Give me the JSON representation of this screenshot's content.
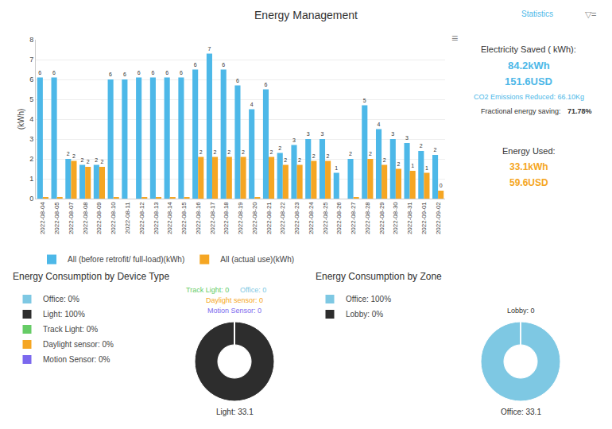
{
  "chart_data": [
    {
      "type": "bar",
      "title": "Energy Management",
      "categories": [
        "2022-08-04",
        "2022-08-05",
        "2022-08-07",
        "2022-08-08",
        "2022-08-09",
        "2022-08-10",
        "2022-08-11",
        "2022-08-12",
        "2022-08-13",
        "2022-08-14",
        "2022-08-15",
        "2022-08-16",
        "2022-08-17",
        "2022-08-18",
        "2022-08-19",
        "2022-08-20",
        "2022-08-21",
        "2022-08-22",
        "2022-08-23",
        "2022-08-24",
        "2022-08-25",
        "2022-08-26",
        "2022-08-27",
        "2022-08-28",
        "2022-08-29",
        "2022-08-30",
        "2022-08-31",
        "2022-09-01",
        "2022-09-02"
      ],
      "series": [
        {
          "name": "All (before retrofit/ full-load)(kWh)",
          "color": "#4db8e8",
          "values": [
            6.1,
            6.1,
            2.0,
            1.7,
            1.7,
            6.0,
            6.0,
            6.1,
            6.1,
            6.1,
            6.1,
            6.5,
            7.3,
            6.5,
            5.7,
            4.5,
            5.5,
            2.3,
            2.7,
            3.0,
            3.0,
            1.3,
            2.0,
            4.7,
            3.5,
            3.0,
            2.8,
            2.4,
            2.2
          ],
          "value_labels": [
            "6",
            "6",
            "2",
            "2",
            "2",
            "6",
            "6",
            "6",
            "6",
            "6",
            "6",
            "6",
            "7",
            "6",
            "6",
            "4",
            "6",
            "2",
            "3",
            "3",
            "3",
            "1",
            "2",
            "5",
            "4",
            "3",
            "3",
            "2",
            "2"
          ]
        },
        {
          "name": "All (actual use)(kWh)",
          "color": "#f5a623",
          "values": [
            0.05,
            0.05,
            1.9,
            1.6,
            1.6,
            0.05,
            0.0,
            0.05,
            0.05,
            0.05,
            0.05,
            2.1,
            2.1,
            2.1,
            2.1,
            0.05,
            2.1,
            1.7,
            1.7,
            1.9,
            1.9,
            0.0,
            0.05,
            2.0,
            1.7,
            1.5,
            1.4,
            1.3,
            0.4
          ],
          "value_labels": [
            null,
            null,
            "2",
            "2",
            "2",
            null,
            null,
            null,
            null,
            null,
            null,
            "2",
            "2",
            "2",
            "2",
            null,
            "2",
            "2",
            "2",
            "2",
            "2",
            null,
            null,
            "2",
            "2",
            "2",
            "1",
            "1",
            "0"
          ]
        }
      ],
      "ylabel": "(kWh)",
      "ylim": [
        0,
        8
      ],
      "yticks": [
        0,
        1,
        2,
        3,
        4,
        5,
        6,
        7,
        8
      ],
      "grid": true,
      "data_labels": true,
      "legend": "bottom",
      "annotations": [
        {
          "text": "Statistics",
          "color": "#4db8e8"
        },
        {
          "text": "▽=",
          "color": "#888888"
        },
        {
          "text": "≡",
          "color": "#888888"
        },
        {
          "text": "Electricity Saved ( kWh):",
          "color": "#333333"
        },
        {
          "text": "84.2kWh",
          "color": "#4db8e8"
        },
        {
          "text": "151.6USD",
          "color": "#4db8e8"
        },
        {
          "text": "CO2 Emissions Reduced: 66.10Kg",
          "color": "#4db8e8"
        },
        {
          "text": "Fractional energy saving:",
          "color": "#333333"
        },
        {
          "text": "71.78%",
          "color": "#333333"
        },
        {
          "text": "Energy Used:",
          "color": "#333333"
        },
        {
          "text": "33.1kWh",
          "color": "#f5a623"
        },
        {
          "text": "59.6USD",
          "color": "#f5a623"
        }
      ]
    },
    {
      "type": "pie",
      "title": "Energy Consumption by Device Type",
      "categories": [
        "Office: 0%",
        "Light: 100%",
        "Track Light: 0%",
        "Daylight sensor: 0%",
        "Motion Sensor: 0%"
      ],
      "values": [
        0.001,
        100,
        0.001,
        0.001,
        0.001
      ],
      "colors": [
        "#7ec8e3",
        "#2d2d2d",
        "#66cc66",
        "#f5a623",
        "#7b68ee"
      ],
      "legend": "left",
      "annotations": [
        {
          "text": "Light: 33.1",
          "color": "#333333"
        },
        {
          "text": "Track Light: 0",
          "color": "#66cc66"
        },
        {
          "text": "Office: 0",
          "color": "#7ec8e3"
        },
        {
          "text": "Daylight sensor: 0",
          "color": "#f5a623"
        },
        {
          "text": "Motion Sensor: 0",
          "color": "#7b68ee"
        }
      ]
    },
    {
      "type": "pie",
      "title": "Energy Consumption by Zone",
      "categories": [
        "Office: 100%",
        "Lobby: 0%"
      ],
      "values": [
        100,
        0.001
      ],
      "colors": [
        "#7ec8e3",
        "#2d2d2d"
      ],
      "legend": "left",
      "annotations": [
        {
          "text": "Office: 33.1",
          "color": "#333333"
        },
        {
          "text": "Lobby: 0",
          "color": "#333333"
        }
      ]
    }
  ]
}
